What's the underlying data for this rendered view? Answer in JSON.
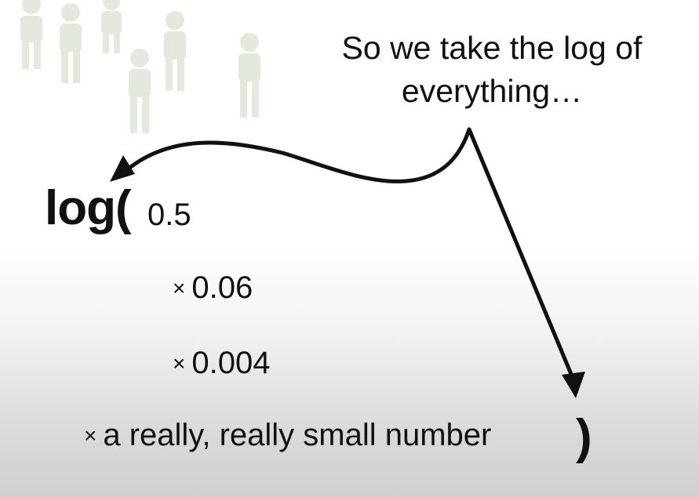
{
  "caption": {
    "line1": "So we take the log of",
    "line2": "everything…"
  },
  "expression": {
    "function": "log(",
    "first_term": "0.5",
    "multiply_sign": "×",
    "terms": [
      "0.06",
      "0.004",
      "a really, really small number"
    ],
    "closing_paren": ")"
  },
  "colors": {
    "text": "#111111",
    "arrow": "#111111",
    "silhouettes": "#dfe6d8"
  },
  "icons": [
    "person-silhouette-icon",
    "curved-arrow-icon",
    "straight-arrow-icon"
  ]
}
